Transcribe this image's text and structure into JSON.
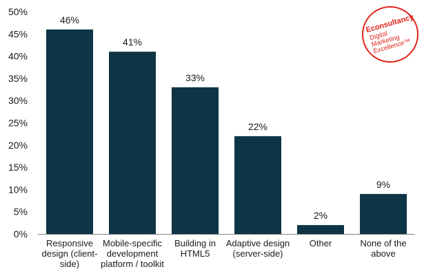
{
  "chart_data": {
    "type": "bar",
    "categories": [
      [
        "Responsive",
        "design (client-",
        "side)"
      ],
      [
        "Mobile-specific",
        "development",
        "platform / toolkit"
      ],
      [
        "Building in",
        "HTML5"
      ],
      [
        "Adaptive design",
        "(server-side)"
      ],
      [
        "Other"
      ],
      [
        "None of the",
        "above"
      ]
    ],
    "values": [
      46,
      41,
      33,
      22,
      2,
      9
    ],
    "data_labels": [
      "46%",
      "41%",
      "33%",
      "22%",
      "2%",
      "9%"
    ],
    "yticks": [
      "0%",
      "5%",
      "10%",
      "15%",
      "20%",
      "25%",
      "30%",
      "35%",
      "40%",
      "45%",
      "50%"
    ],
    "ylim": [
      0,
      50
    ],
    "ytick_step": 5,
    "title": "",
    "xlabel": "",
    "ylabel": "",
    "bar_color": "#0d3545",
    "grid": false
  },
  "logo": {
    "brand": "Econsultancy",
    "tagline_lines": [
      "Digital",
      "Marketing",
      "Excellence™"
    ],
    "color": "#e2231a"
  }
}
